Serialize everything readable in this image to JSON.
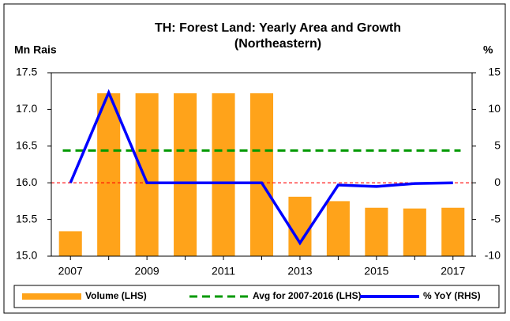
{
  "chart_data": {
    "type": "bar",
    "title": [
      "TH: Forest Land: Yearly Area and Growth",
      "(Northeastern)"
    ],
    "ylabel": "Mn Rais",
    "y2label": "%",
    "categories": [
      "2007",
      null,
      "2009",
      null,
      "2011",
      null,
      "2013",
      null,
      "2015",
      null,
      "2017"
    ],
    "ylim": [
      15,
      17.5
    ],
    "yticks": [
      {
        "value": 15,
        "label": "15.0"
      },
      15.5,
      {
        "value": 16,
        "label": "16.0"
      },
      16.5,
      {
        "value": 17,
        "label": "17.0"
      },
      17.5
    ],
    "y2lim": [
      -10,
      15
    ],
    "y2ticks": [
      -10,
      -5,
      0,
      5,
      10,
      15
    ],
    "zero_line": {
      "axis": "y2",
      "color": "#ff0000"
    },
    "legend": "bottom",
    "series": [
      {
        "name": "Volume (LHS)",
        "type": "bar",
        "color": "#ffa31a",
        "values": [
          15.34,
          17.22,
          17.22,
          17.22,
          17.22,
          17.22,
          15.81,
          15.75,
          15.66,
          15.65,
          15.66
        ]
      },
      {
        "name": "Avg for 2007-2016 (LHS)",
        "type": "hline",
        "color": "#009900",
        "dashed": true,
        "value": 16.44
      },
      {
        "name": "% YoY (RHS)",
        "type": "line",
        "axis": "y2",
        "color": "#0000ff",
        "values": [
          0,
          12.3,
          0,
          0,
          0,
          0,
          -8.2,
          -0.3,
          -0.5,
          -0.1,
          0
        ]
      }
    ]
  }
}
